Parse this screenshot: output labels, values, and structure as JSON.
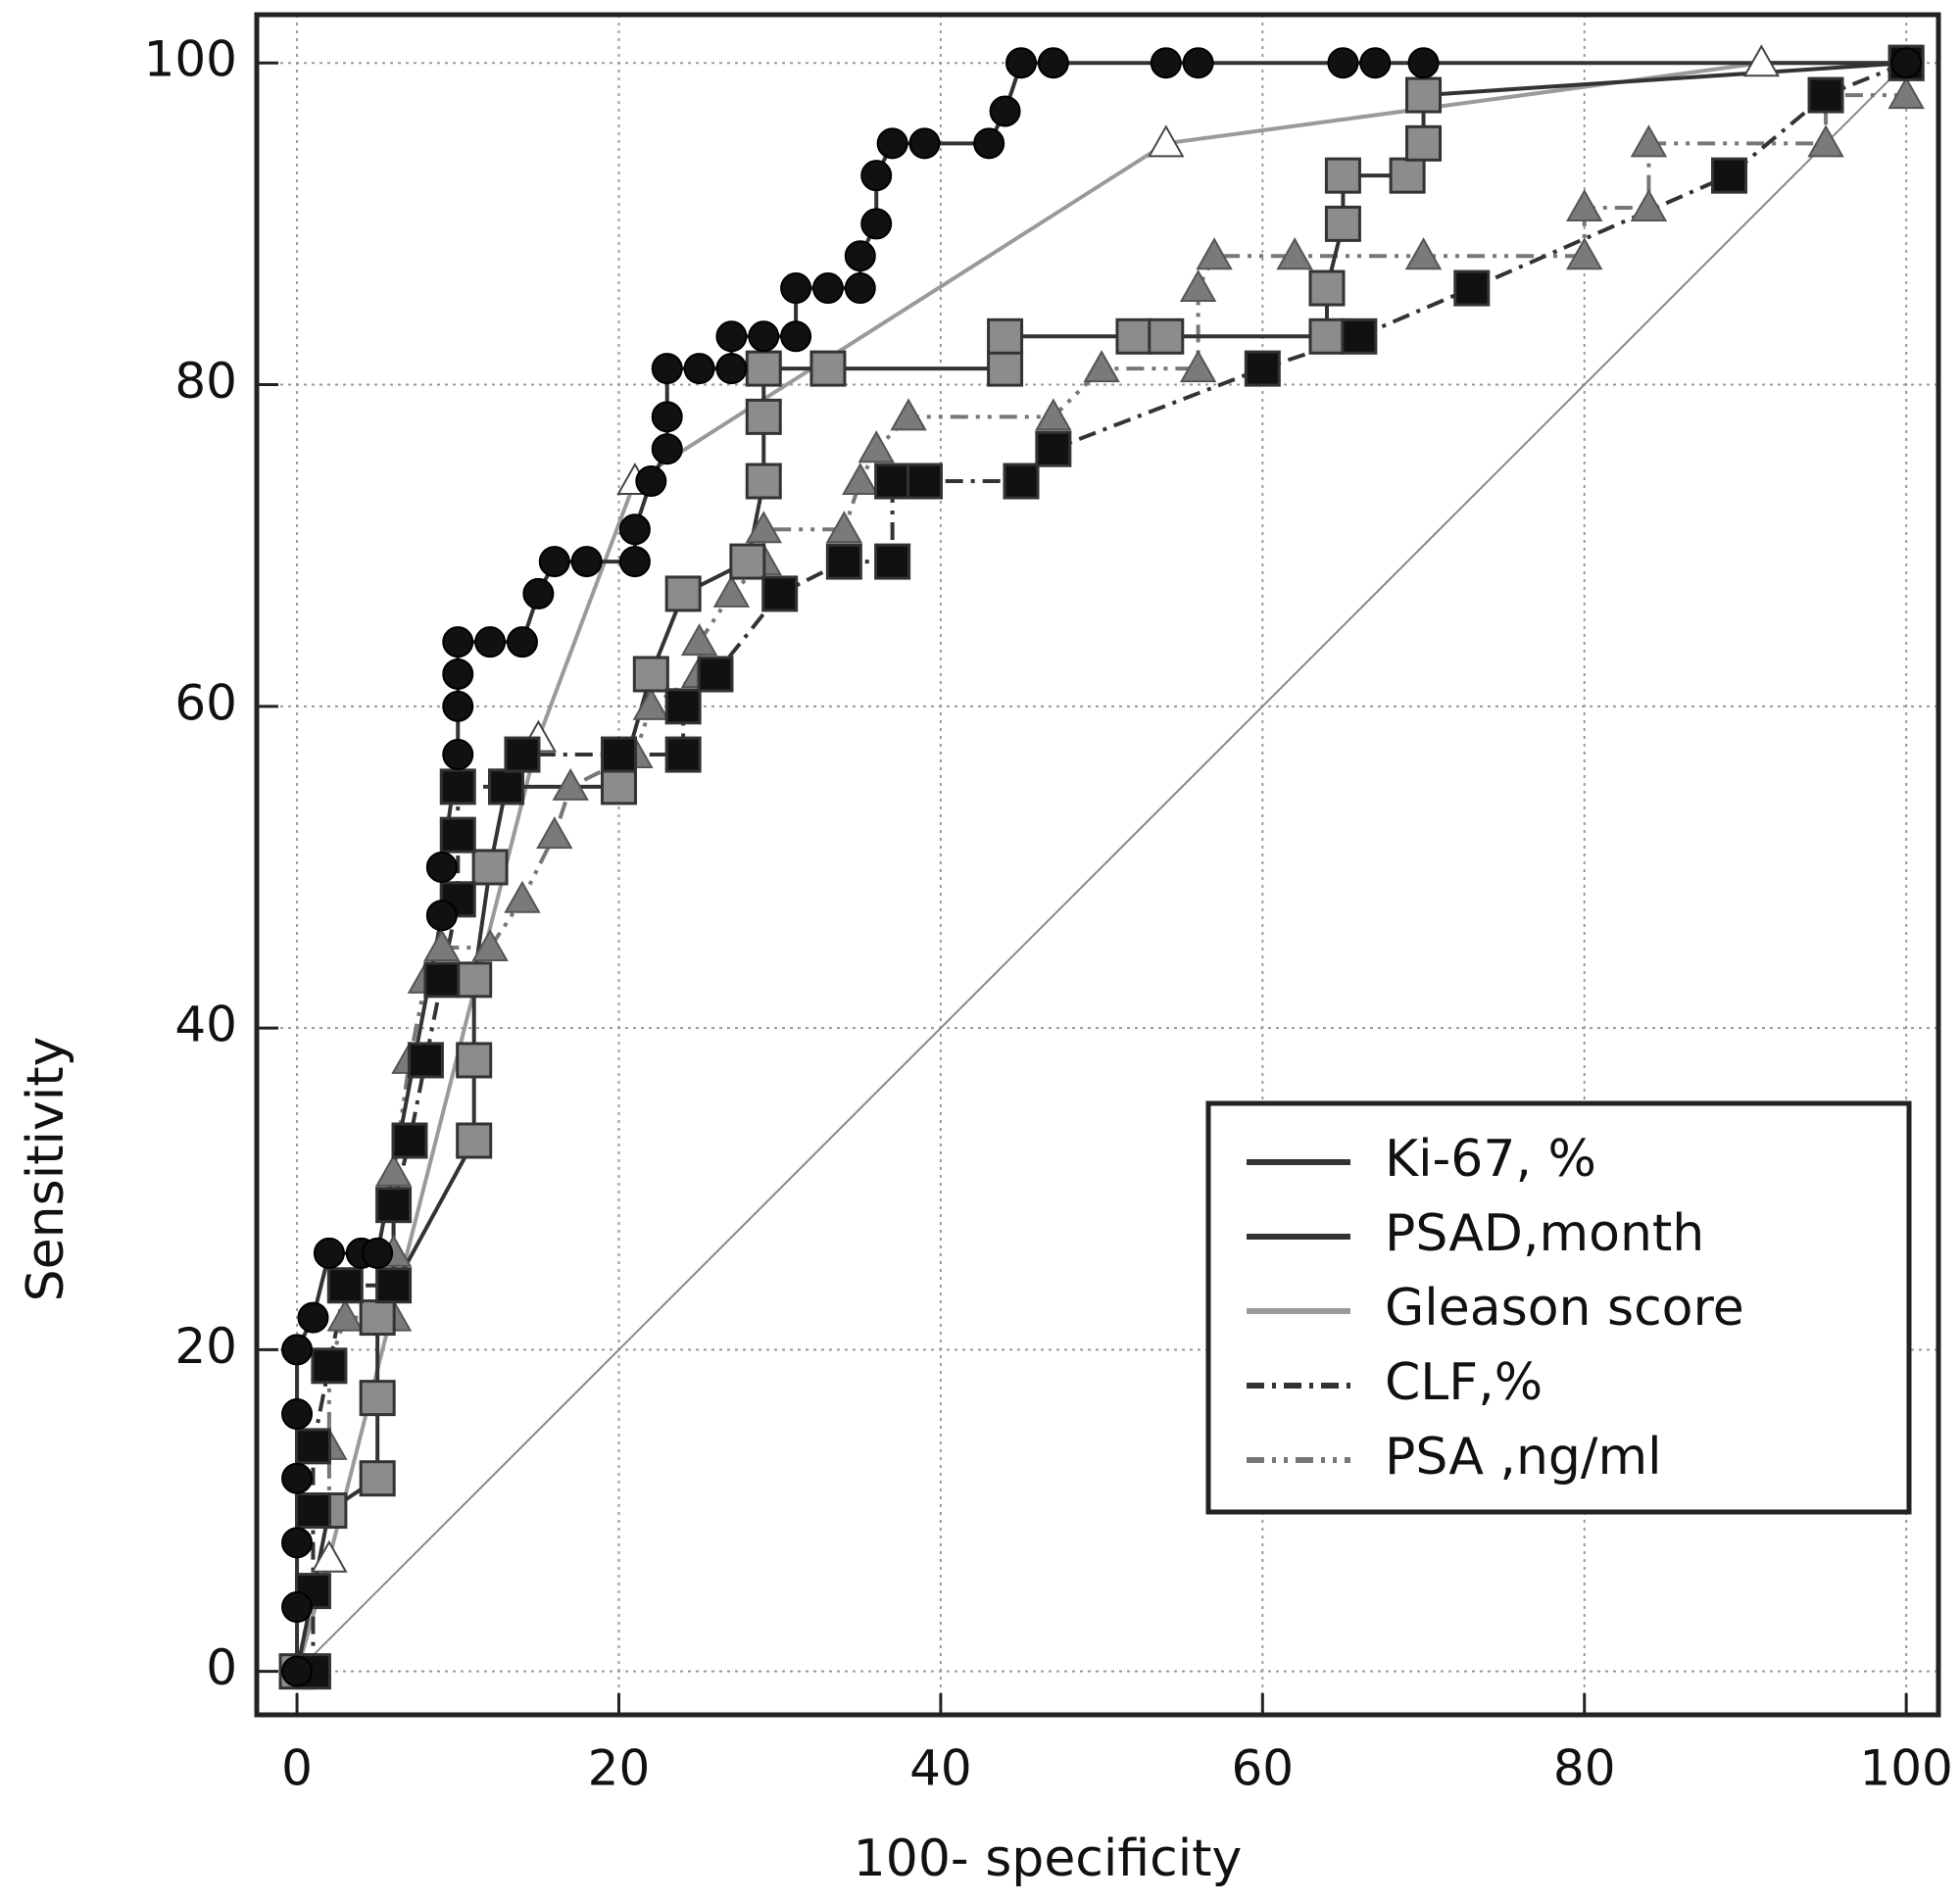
{
  "chart_data": {
    "type": "line",
    "x_label": "100- specificity",
    "y_label": "Sensitivity",
    "xlim": [
      -2.5,
      102
    ],
    "ylim": [
      -2.7,
      103
    ],
    "xticks": [
      0,
      20,
      40,
      60,
      80,
      100
    ],
    "yticks": [
      0,
      20,
      40,
      60,
      80,
      100
    ],
    "grid": true,
    "legend": "lower right",
    "series": [
      {
        "name": "Ki-67, %",
        "color": "#111111",
        "line_color": "#333333",
        "linestyle": "solid",
        "marker": "circle",
        "x": [
          0,
          0,
          0,
          0,
          0,
          0,
          1,
          2,
          4,
          5,
          9,
          9,
          10,
          10,
          10,
          10,
          12,
          14,
          15,
          16,
          18,
          21,
          21,
          22,
          23,
          23,
          23,
          25,
          27,
          27,
          29,
          31,
          31,
          33,
          35,
          35,
          36,
          36,
          37,
          39,
          43,
          44,
          45,
          47,
          54,
          56,
          65,
          67,
          70,
          100
        ],
        "values": [
          0,
          4,
          8,
          12,
          16,
          20,
          22,
          26,
          26,
          26,
          47,
          50,
          57,
          60,
          62,
          64,
          64,
          64,
          67,
          69,
          69,
          69,
          71,
          74,
          76,
          78,
          81,
          81,
          81,
          83,
          83,
          83,
          86,
          86,
          86,
          88,
          90,
          93,
          95,
          95,
          95,
          97,
          100,
          100,
          100,
          100,
          100,
          100,
          100,
          100
        ]
      },
      {
        "name": " PSAD,month",
        "color": "#8c8c8c",
        "line_color": "#333333",
        "linestyle": "solid",
        "marker": "square",
        "x": [
          0,
          2,
          5,
          5,
          5,
          11,
          11,
          11,
          12,
          13,
          20,
          22,
          24,
          28,
          29,
          29,
          29,
          33,
          44,
          44,
          52,
          54,
          64,
          64,
          65,
          65,
          69,
          70,
          70,
          100
        ],
        "values": [
          0,
          10,
          12,
          17,
          22,
          33,
          38,
          43,
          50,
          55,
          55,
          62,
          67,
          69,
          74,
          78,
          81,
          81,
          81,
          83,
          83,
          83,
          83,
          86,
          90,
          93,
          93,
          95,
          98,
          100
        ]
      },
      {
        "name": " Gleason score",
        "color": "#ffffff",
        "line_color": "#9a9a9a",
        "linestyle": "solid",
        "marker": "triangle-open",
        "x": [
          0,
          2,
          15,
          21,
          54,
          91,
          100
        ],
        "values": [
          0,
          7,
          58,
          74,
          95,
          100,
          100
        ]
      },
      {
        "name": "  CLF,%",
        "color": "#111111",
        "line_color": "#333333",
        "linestyle": "dashdot",
        "marker": "square",
        "x": [
          1,
          1,
          1,
          1,
          2,
          3,
          6,
          6,
          7,
          8,
          9,
          10,
          10,
          10,
          13,
          14,
          20,
          24,
          24,
          26,
          30,
          34,
          37,
          37,
          39,
          45,
          47,
          60,
          66,
          73,
          89,
          95,
          100
        ],
        "values": [
          0,
          5,
          10,
          14,
          19,
          24,
          24,
          29,
          33,
          38,
          43,
          48,
          52,
          55,
          55,
          57,
          57,
          57,
          60,
          62,
          67,
          69,
          69,
          74,
          74,
          74,
          76,
          81,
          83,
          86,
          93,
          98,
          100
        ]
      },
      {
        "name": "PSA ,ng/ml",
        "color": "#7a7a7a",
        "line_color": "#777777",
        "linestyle": "dashdotdot",
        "marker": "triangle",
        "x": [
          0,
          1,
          2,
          2,
          2,
          3,
          6,
          6,
          6,
          7,
          8,
          9,
          12,
          14,
          16,
          17,
          21,
          22,
          25,
          25,
          27,
          29,
          29,
          34,
          35,
          36,
          38,
          47,
          50,
          56,
          56,
          57,
          62,
          70,
          80,
          80,
          84,
          84,
          95,
          95,
          100
        ],
        "values": [
          0,
          5,
          10,
          14,
          19,
          22,
          22,
          26,
          31,
          38,
          43,
          45,
          45,
          48,
          52,
          55,
          57,
          60,
          62,
          64,
          67,
          69,
          71,
          71,
          74,
          76,
          78,
          78,
          81,
          81,
          86,
          88,
          88,
          88,
          88,
          91,
          91,
          95,
          95,
          98,
          98
        ]
      }
    ]
  }
}
